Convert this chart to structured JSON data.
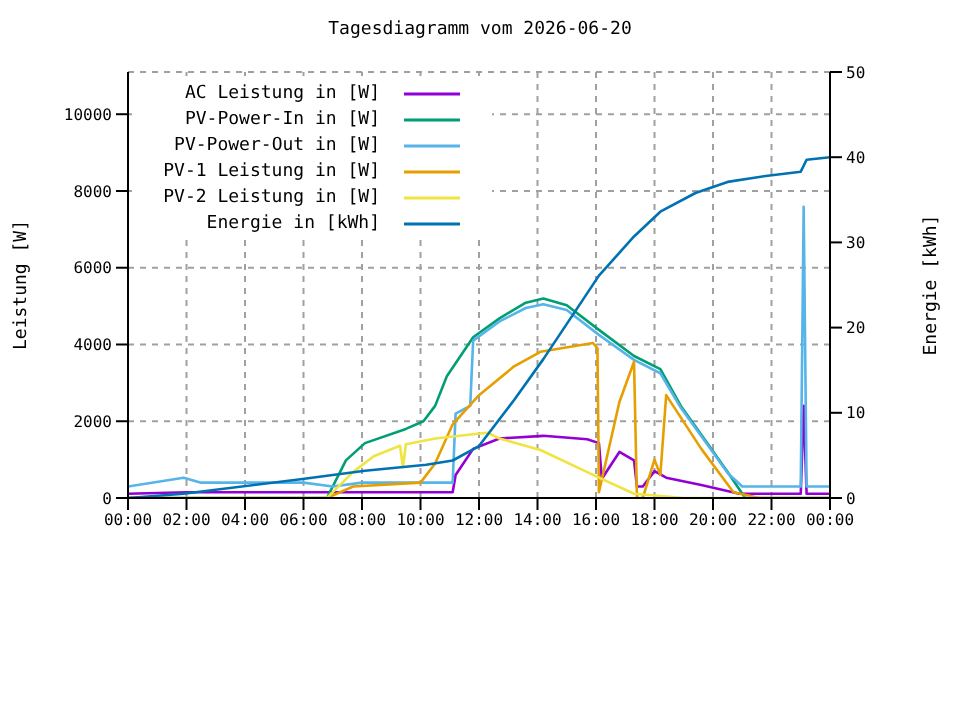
{
  "chart_data": {
    "type": "line",
    "title": "Tagesdiagramm vom 2026-06-20",
    "ylabel": "Leistung [W]",
    "y2label": "Energie [kWh]",
    "xlim": [
      0,
      24
    ],
    "xticks": [
      {
        "value": 0,
        "label": "00:00"
      },
      {
        "value": 2,
        "label": "02:00"
      },
      {
        "value": 4,
        "label": "04:00"
      },
      {
        "value": 6,
        "label": "06:00"
      },
      {
        "value": 8,
        "label": "08:00"
      },
      {
        "value": 10,
        "label": "10:00"
      },
      {
        "value": 12,
        "label": "12:00"
      },
      {
        "value": 14,
        "label": "14:00"
      },
      {
        "value": 16,
        "label": "16:00"
      },
      {
        "value": 18,
        "label": "18:00"
      },
      {
        "value": 20,
        "label": "20:00"
      },
      {
        "value": 22,
        "label": "22:00"
      },
      {
        "value": 24,
        "label": "00:00"
      }
    ],
    "ylim": [
      0,
      11100
    ],
    "yticks": [
      0,
      2000,
      4000,
      6000,
      8000,
      10000
    ],
    "y2lim": [
      0,
      50
    ],
    "y2ticks": [
      0,
      10,
      20,
      30,
      40,
      50
    ],
    "grid": true,
    "legend": "top left",
    "line_style": "solid",
    "series": [
      {
        "name": "AC Leistung in [W]",
        "color": "#9400d3",
        "x": [
          0,
          2,
          4,
          6,
          8,
          10,
          11.1,
          11.2,
          11.8,
          12.7,
          14.2,
          15.7,
          16.1,
          16.2,
          16.8,
          17.3,
          17.4,
          17.6,
          18,
          18.4,
          19.6,
          20.9,
          23,
          23.1,
          23.2,
          24
        ],
        "values": [
          110,
          150,
          150,
          150,
          150,
          150,
          150,
          600,
          1280,
          1550,
          1620,
          1530,
          1430,
          500,
          1200,
          980,
          300,
          300,
          700,
          530,
          340,
          110,
          110,
          2400,
          110,
          110
        ]
      },
      {
        "name": "PV-Power-In in [W]",
        "color": "#009e73",
        "x": [
          0,
          6.8,
          7.45,
          8.1,
          9.5,
          10.1,
          10.5,
          10.9,
          11.8,
          12.7,
          13.6,
          14.2,
          15,
          16.1,
          17.3,
          18.2,
          18.9,
          19.8,
          20.5,
          21.1,
          24
        ],
        "values": [
          0,
          0,
          980,
          1430,
          1800,
          2000,
          2400,
          3170,
          4190,
          4680,
          5090,
          5200,
          5020,
          4380,
          3700,
          3360,
          2400,
          1430,
          680,
          0,
          0
        ]
      },
      {
        "name": "PV-Power-Out in [W]",
        "color": "#56b4e9",
        "x": [
          0,
          1.9,
          2.5,
          6,
          7,
          8,
          10,
          11.1,
          11.2,
          11.7,
          11.8,
          12.7,
          13.6,
          14.2,
          15,
          16.1,
          17.3,
          18.2,
          18.9,
          19.8,
          20.5,
          21,
          22.8,
          23,
          23.1,
          23.2,
          24
        ],
        "values": [
          300,
          530,
          400,
          400,
          300,
          400,
          400,
          400,
          2200,
          2400,
          4100,
          4600,
          4950,
          5050,
          4900,
          4250,
          3600,
          3250,
          2350,
          1400,
          650,
          300,
          300,
          300,
          7590,
          300,
          300
        ]
      },
      {
        "name": "PV-1 Leistung in [W]",
        "color": "#e69f00",
        "x": [
          0,
          6.8,
          7.7,
          10,
          10.5,
          11.1,
          12,
          13.2,
          14.1,
          15.9,
          16.05,
          16.1,
          16.8,
          17.3,
          17.4,
          17.6,
          18,
          18.2,
          18.4,
          19.6,
          20.7,
          21.6,
          24
        ],
        "values": [
          0,
          0,
          300,
          400,
          900,
          1920,
          2680,
          3430,
          3810,
          4040,
          3900,
          150,
          2500,
          3550,
          0,
          0,
          1000,
          600,
          2680,
          1280,
          150,
          0,
          0
        ]
      },
      {
        "name": "PV-2 Leistung in [W]",
        "color": "#f0e442",
        "x": [
          0,
          6.8,
          7.7,
          8.4,
          9.3,
          9.4,
          9.5,
          10.5,
          11.8,
          12.3,
          12.7,
          14.1,
          16.1,
          17.3,
          19,
          24
        ],
        "values": [
          0,
          0,
          680,
          1090,
          1360,
          800,
          1400,
          1550,
          1660,
          1700,
          1550,
          1250,
          530,
          110,
          0,
          0
        ]
      },
      {
        "name": "Energie in [kWh]",
        "color": "#0072b2",
        "axis": "y2",
        "x": [
          0,
          1.9,
          5.9,
          8.1,
          10.2,
          11.1,
          12,
          13.2,
          14.2,
          16.1,
          17.3,
          18.2,
          19.4,
          20.5,
          21.8,
          23,
          23.2,
          24
        ],
        "values": [
          0,
          0.5,
          2.2,
          3.2,
          3.9,
          4.4,
          6.1,
          11.5,
          16.3,
          26.1,
          30.7,
          33.6,
          35.8,
          37.1,
          37.8,
          38.3,
          39.7,
          40
        ]
      }
    ]
  }
}
